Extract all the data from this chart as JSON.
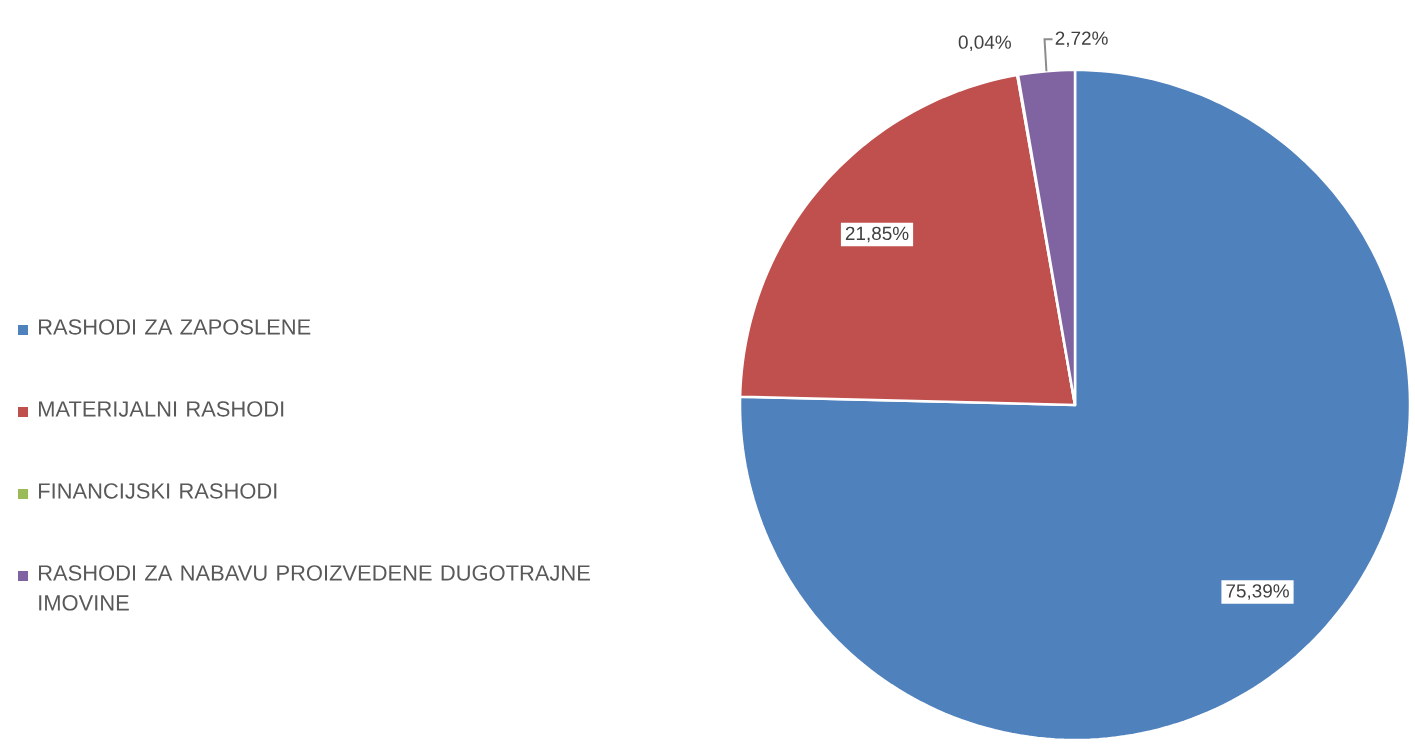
{
  "chart_data": {
    "type": "pie",
    "categories": [
      "RASHODI ZA ZAPOSLENE",
      "MATERIJALNI RASHODI",
      "FINANCIJSKI RASHODI",
      "RASHODI ZA NABAVU PROIZVEDENE DUGOTRAJNE IMOVINE"
    ],
    "values": [
      75.39,
      21.85,
      0.04,
      2.72
    ],
    "colors": [
      "#4f81bd",
      "#c0504d",
      "#9bbb59",
      "#8064a2"
    ],
    "value_labels": [
      "75,39%",
      "21,85%",
      "0,04%",
      "2,72%"
    ],
    "legend": "left"
  }
}
